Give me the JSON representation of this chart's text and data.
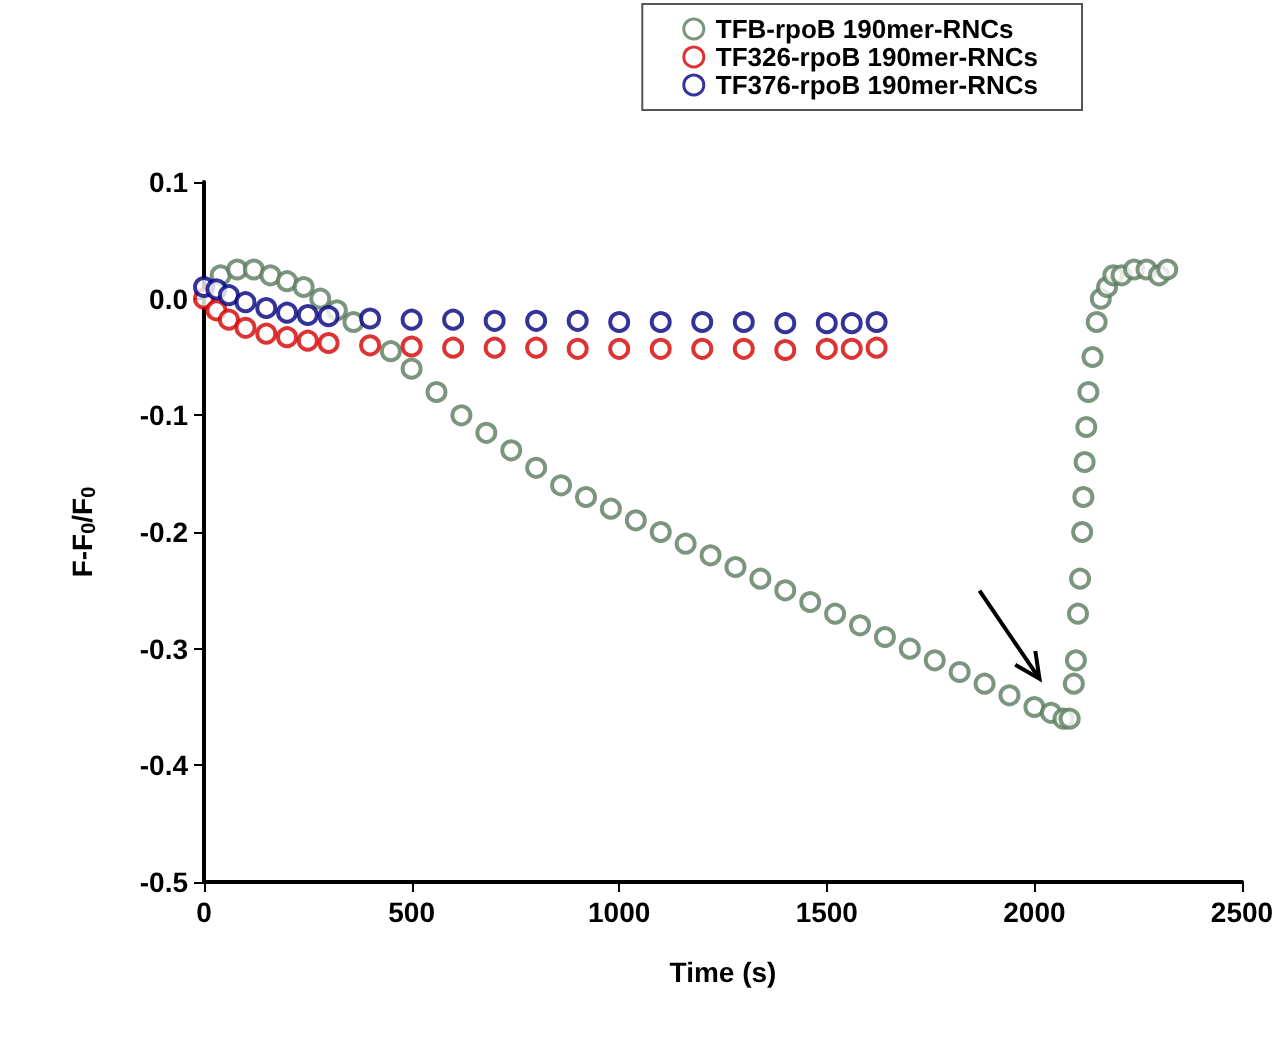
{
  "chart_data": {
    "type": "scatter",
    "xlabel": "Time (s)",
    "ylabel": "F-F$_{0}$/F$_{0}$",
    "marker": "circle",
    "legend": "top right",
    "grid": false,
    "xlim": [
      0,
      2500
    ],
    "xticks": [
      0,
      500,
      1000,
      1500,
      2000,
      2500
    ],
    "ylim": [
      -0.5,
      0.1
    ],
    "yticks": [
      0.1,
      {
        "value": 0,
        "label": "0.0"
      },
      -0.1,
      -0.2,
      -0.3,
      -0.4,
      -0.5
    ],
    "series": [
      {
        "name": "TFB-rpoB 190mer-RNCs",
        "color": "#5b7b5e",
        "x": [
          40,
          80,
          120,
          160,
          200,
          240,
          280,
          320,
          360,
          450,
          500,
          560,
          620,
          680,
          740,
          800,
          860,
          920,
          980,
          1040,
          1100,
          1160,
          1220,
          1280,
          1340,
          1400,
          1460,
          1520,
          1580,
          1640,
          1700,
          1760,
          1820,
          1880,
          1940,
          2000,
          2040,
          2070,
          2085,
          2095,
          2100,
          2105,
          2110,
          2115,
          2118,
          2121,
          2125,
          2130,
          2140,
          2150,
          2160,
          2175,
          2190,
          2210,
          2240,
          2270,
          2300,
          2320
        ],
        "values": [
          0.02,
          0.025,
          0.025,
          0.02,
          0.015,
          0.01,
          0.0,
          -0.01,
          -0.02,
          -0.045,
          -0.06,
          -0.08,
          -0.1,
          -0.115,
          -0.13,
          -0.145,
          -0.16,
          -0.17,
          -0.18,
          -0.19,
          -0.2,
          -0.21,
          -0.22,
          -0.23,
          -0.24,
          -0.25,
          -0.26,
          -0.27,
          -0.28,
          -0.29,
          -0.3,
          -0.31,
          -0.32,
          -0.33,
          -0.34,
          -0.35,
          -0.355,
          -0.36,
          -0.36,
          -0.33,
          -0.31,
          -0.27,
          -0.24,
          -0.2,
          -0.17,
          -0.14,
          -0.11,
          -0.08,
          -0.05,
          -0.02,
          0.0,
          0.01,
          0.02,
          0.02,
          0.025,
          0.025,
          0.02,
          0.025
        ]
      },
      {
        "name": "TF326-rpoB 190mer-RNCs",
        "color": "#d40000",
        "x": [
          0,
          30,
          60,
          100,
          150,
          200,
          250,
          300,
          400,
          500,
          600,
          700,
          800,
          900,
          1000,
          1100,
          1200,
          1300,
          1400,
          1500,
          1560,
          1620
        ],
        "values": [
          0.0,
          -0.01,
          -0.018,
          -0.025,
          -0.03,
          -0.033,
          -0.036,
          -0.038,
          -0.04,
          -0.041,
          -0.042,
          -0.042,
          -0.042,
          -0.043,
          -0.043,
          -0.043,
          -0.043,
          -0.043,
          -0.044,
          -0.043,
          -0.043,
          -0.042
        ]
      },
      {
        "name": "TF376-rpoB 190mer-RNCs",
        "color": "#000080",
        "x": [
          0,
          30,
          60,
          100,
          150,
          200,
          250,
          300,
          400,
          500,
          600,
          700,
          800,
          900,
          1000,
          1100,
          1200,
          1300,
          1400,
          1500,
          1560,
          1620
        ],
        "values": [
          0.01,
          0.008,
          0.003,
          -0.003,
          -0.008,
          -0.012,
          -0.014,
          -0.015,
          -0.017,
          -0.018,
          -0.018,
          -0.019,
          -0.019,
          -0.019,
          -0.02,
          -0.02,
          -0.02,
          -0.02,
          -0.021,
          -0.021,
          -0.021,
          -0.02
        ]
      }
    ]
  }
}
